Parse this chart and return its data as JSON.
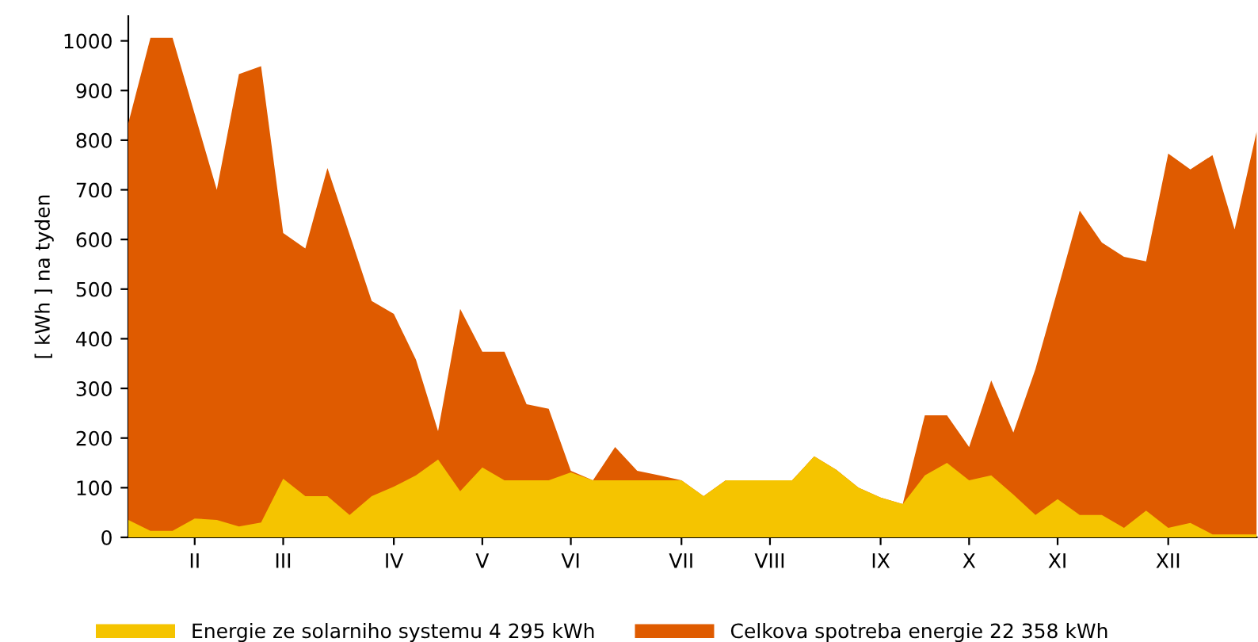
{
  "chart_data": {
    "type": "area",
    "ylabel": "[ kWh ] na tyden",
    "categories": [
      null,
      null,
      null,
      "II",
      null,
      null,
      null,
      "III",
      null,
      null,
      null,
      null,
      "IV",
      null,
      null,
      null,
      "V",
      null,
      null,
      null,
      "VI",
      null,
      null,
      null,
      null,
      "VII",
      null,
      null,
      null,
      "VIII",
      null,
      null,
      null,
      null,
      "IX",
      null,
      null,
      null,
      "X",
      null,
      null,
      null,
      "XI",
      null,
      null,
      null,
      null,
      "XII",
      null,
      null,
      null,
      null
    ],
    "series": [
      {
        "name": "Energie ze solarniho systemu 4 295 kWh",
        "color": "#f5c400",
        "values": [
          35,
          13,
          13,
          38,
          35,
          22,
          30,
          118,
          83,
          83,
          45,
          83,
          102,
          125,
          157,
          93,
          141,
          115,
          115,
          115,
          131,
          115,
          115,
          115,
          115,
          115,
          83,
          115,
          115,
          115,
          115,
          163,
          136,
          100,
          80,
          67,
          125,
          150,
          115,
          125,
          86,
          45,
          77,
          45,
          45,
          19,
          54,
          19,
          29,
          6,
          6,
          6
        ]
      },
      {
        "name": "Celkova spotreba energie 22 358 kWh",
        "color": "#df5b00",
        "values": [
          834,
          1006,
          1006,
          853,
          700,
          933,
          949,
          613,
          582,
          744,
          610,
          476,
          450,
          358,
          214,
          460,
          374,
          374,
          268,
          259,
          134,
          115,
          182,
          134,
          125,
          115,
          83,
          115,
          115,
          115,
          115,
          163,
          136,
          100,
          80,
          67,
          246,
          246,
          182,
          316,
          211,
          339,
          498,
          658,
          594,
          565,
          556,
          773,
          741,
          770,
          620,
          818
        ]
      }
    ],
    "ylim": [
      0,
      1050
    ],
    "yticks": [
      0,
      100,
      200,
      300,
      400,
      500,
      600,
      700,
      800,
      900,
      1000
    ],
    "grid": false,
    "legend": "bottom"
  }
}
